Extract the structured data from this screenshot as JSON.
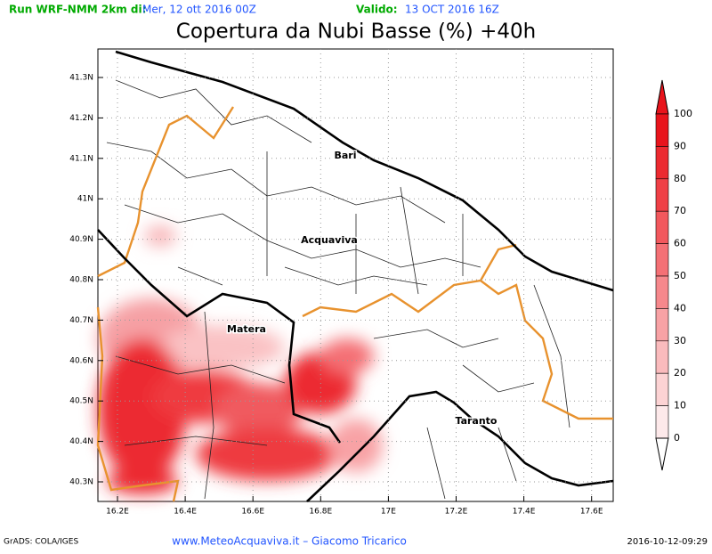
{
  "header": {
    "run": "Run WRF-NMM 2km di:",
    "run_date": "Mer, 12 ott 2016 00Z",
    "valid_label": "Valido:",
    "valid_date": "13 OCT 2016 16Z"
  },
  "title": "Copertura da Nubi Basse (%) +40h",
  "map": {
    "lat_labels": [
      "41.3N",
      "41.2N",
      "41.1N",
      "41N",
      "40.9N",
      "40.8N",
      "40.7N",
      "40.6N",
      "40.5N",
      "40.4N",
      "40.3N"
    ],
    "lon_labels": [
      "16.2E",
      "16.4E",
      "16.6E",
      "16.8E",
      "17E",
      "17.2E",
      "17.4E",
      "17.6E"
    ],
    "places": [
      {
        "name": "Bari"
      },
      {
        "name": "Acquaviva"
      },
      {
        "name": "Matera"
      },
      {
        "name": "Taranto"
      }
    ]
  },
  "colorbar": {
    "labels": [
      "100",
      "90",
      "80",
      "70",
      "60",
      "50",
      "40",
      "30",
      "20",
      "10",
      "0"
    ],
    "colors": [
      "#e8141c",
      "#ec2a30",
      "#ef4046",
      "#f2585d",
      "#f47075",
      "#f6888c",
      "#f8a2a5",
      "#fabbbd",
      "#fcd3d4",
      "#fde9ea"
    ]
  },
  "footer": {
    "left": "GrADS: COLA/IGES",
    "center": "www.MeteoAcquaviva.it  –  Giacomo Tricarico",
    "right": "2016-10-12-09:29"
  }
}
